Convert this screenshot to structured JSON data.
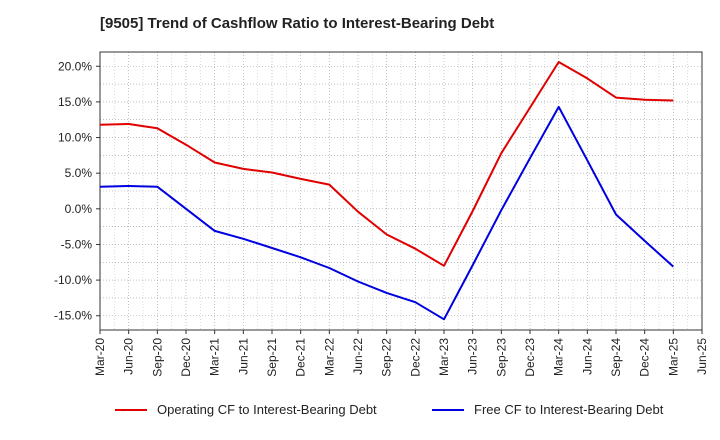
{
  "chart_data": {
    "type": "line",
    "title": "[9505]  Trend of Cashflow Ratio to Interest-Bearing Debt",
    "xlabel": "",
    "ylabel": "",
    "ylim": [
      -17,
      22
    ],
    "y_ticks": [
      "20.0%",
      "15.0%",
      "10.0%",
      "5.0%",
      "0.0%",
      "-5.0%",
      "-10.0%",
      "-15.0%"
    ],
    "y_tick_values": [
      20,
      15,
      10,
      5,
      0,
      -5,
      -10,
      -15
    ],
    "categories": [
      "Mar-20",
      "Jun-20",
      "Sep-20",
      "Dec-20",
      "Mar-21",
      "Jun-21",
      "Sep-21",
      "Dec-21",
      "Mar-22",
      "Jun-22",
      "Sep-22",
      "Dec-22",
      "Mar-23",
      "Jun-23",
      "Sep-23",
      "Dec-23",
      "Mar-24",
      "Jun-24",
      "Sep-24",
      "Dec-24",
      "Mar-25",
      "Jun-25"
    ],
    "grid": true,
    "legend_position": "bottom",
    "series": [
      {
        "name": "Operating CF to Interest-Bearing Debt",
        "color": "#e00000",
        "values": [
          11.8,
          11.9,
          11.3,
          9.0,
          6.5,
          5.6,
          5.1,
          4.2,
          3.4,
          -0.4,
          -3.6,
          -5.6,
          -8.0,
          -0.3,
          7.8,
          14.2,
          20.6,
          18.3,
          15.6,
          15.3,
          15.2,
          null
        ]
      },
      {
        "name": "Free CF to Interest-Bearing Debt",
        "color": "#0000e0",
        "values": [
          3.1,
          3.2,
          3.1,
          0.0,
          -3.1,
          -4.2,
          -5.5,
          -6.8,
          -8.3,
          -10.2,
          -11.8,
          -13.1,
          -15.5,
          -7.9,
          -0.2,
          7.1,
          14.3,
          6.8,
          -0.8,
          -4.5,
          -8.1,
          null
        ]
      }
    ]
  }
}
